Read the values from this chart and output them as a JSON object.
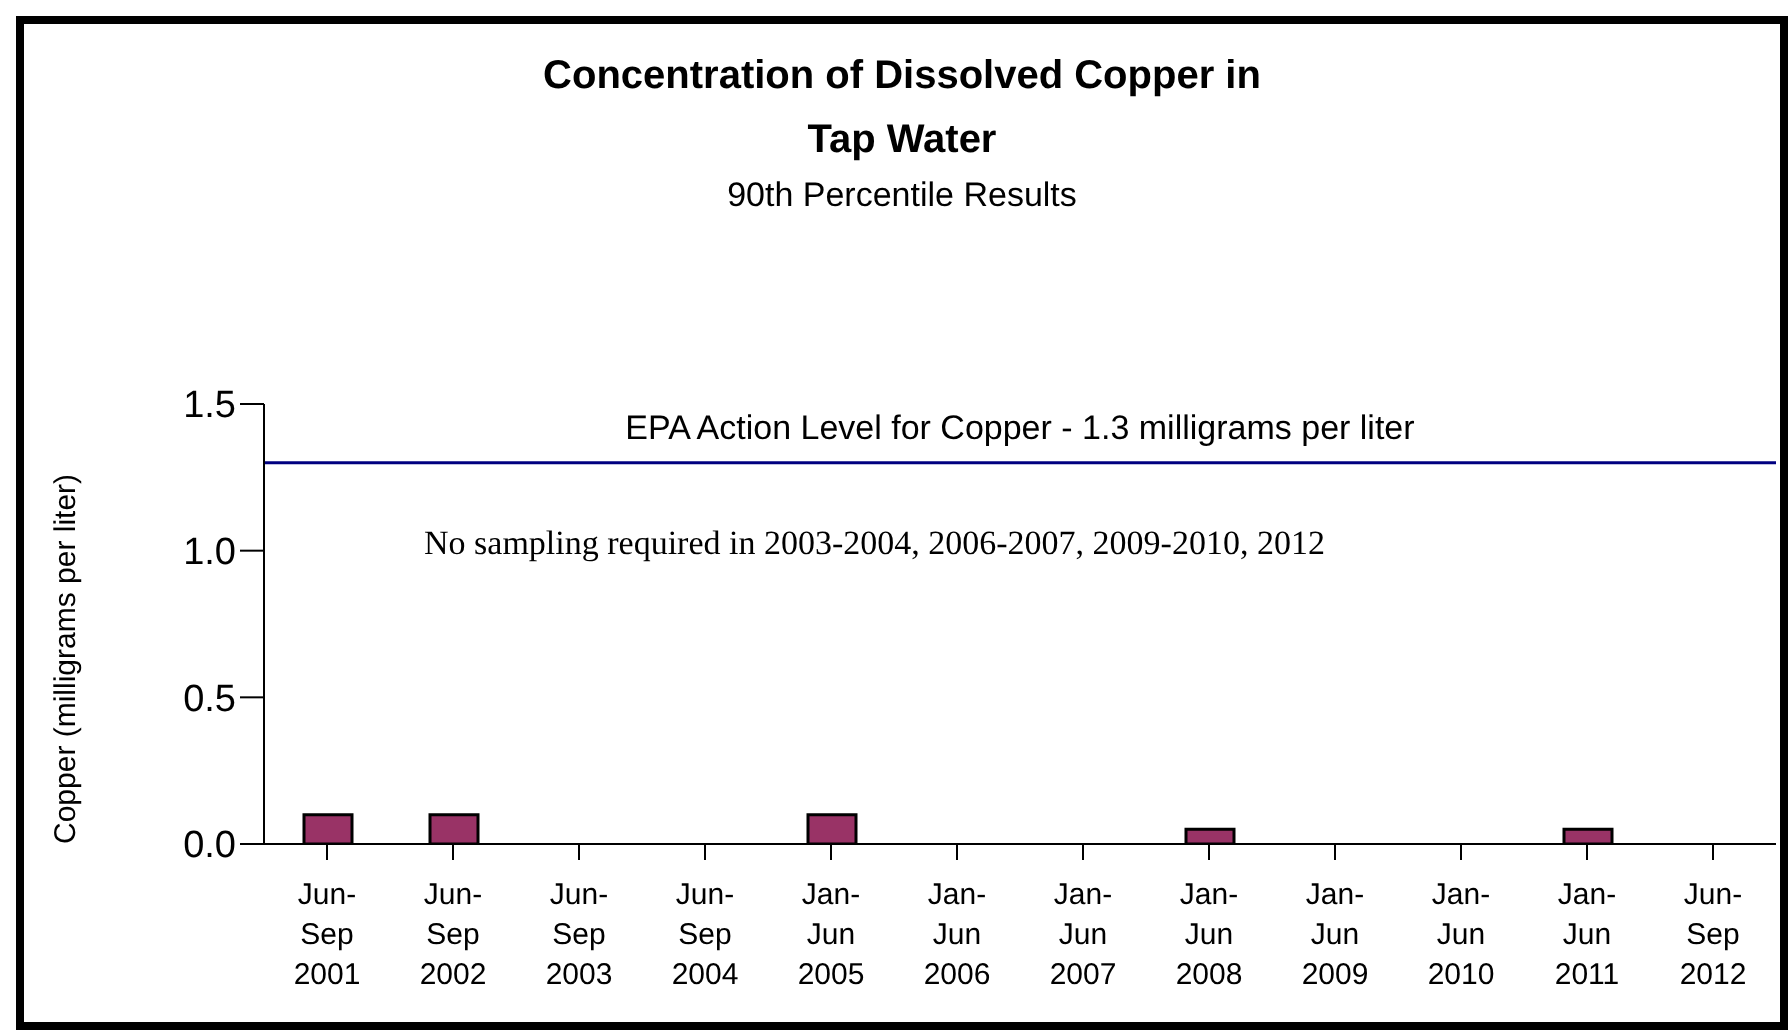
{
  "chart_data": {
    "type": "bar",
    "title": "Concentration of Dissolved Copper in Tap Water",
    "subtitle": "90th Percentile Results",
    "ylabel": "Copper (milligrams per liter)",
    "categories": [
      "Jun-\nSep\n2001",
      "Jun-\nSep\n2002",
      "Jun-\nSep\n2003",
      "Jun-\nSep\n2004",
      "Jan-\nJun\n2005",
      "Jan-\nJun\n2006",
      "Jan-\nJun\n2007",
      "Jan-\nJun\n2008",
      "Jan-\nJun\n2009",
      "Jan-\nJun\n2010",
      "Jan-\nJun\n2011",
      "Jun-\nSep\n2012"
    ],
    "values": [
      0.1,
      0.1,
      null,
      null,
      0.1,
      null,
      null,
      0.05,
      null,
      null,
      0.05,
      null
    ],
    "color": "#993366",
    "ylim": [
      0,
      1.5
    ],
    "yticks": [
      {
        "value": 0,
        "label": "0.0"
      },
      {
        "value": 0.5,
        "label": "0.5"
      },
      {
        "value": 1,
        "label": "1.0"
      },
      {
        "value": 1.5,
        "label": "1.5"
      }
    ],
    "ref_lines": [
      {
        "axis": "y",
        "value": 1.3,
        "label": "EPA Action Level for Copper - 1.3 milligrams per liter",
        "color": "#000080"
      }
    ],
    "annotations": [
      "No sampling required in 2003-2004, 2006-2007, 2009-2010, 2012"
    ],
    "grid": false,
    "legend": false
  }
}
